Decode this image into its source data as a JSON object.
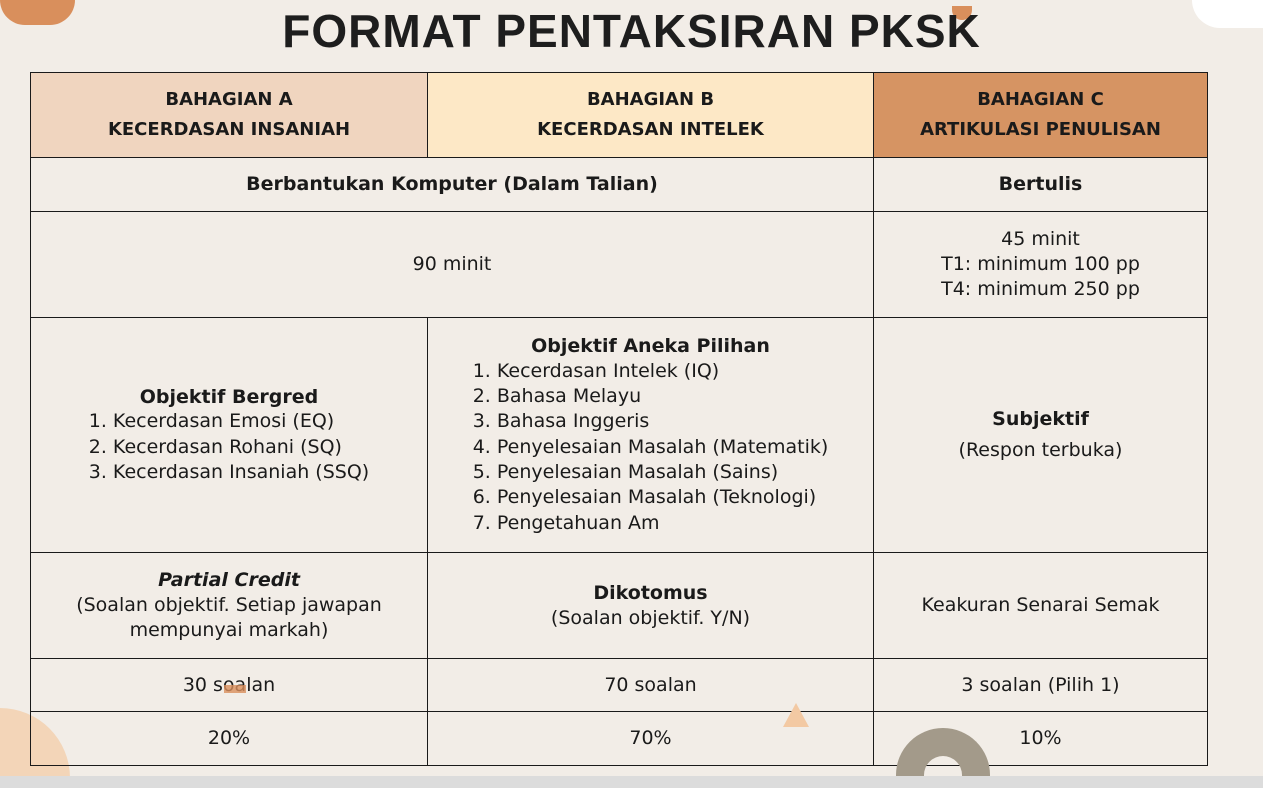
{
  "title": "FORMAT PENTAKSIRAN PKSK",
  "colors": {
    "background": "#f2ede7",
    "header_a": "#f0d5bf",
    "header_b": "#fde8c6",
    "header_c": "#d69463"
  },
  "headers": [
    {
      "line1": "BAHAGIAN A",
      "line2": "KECERDASAN INSANIAH"
    },
    {
      "line1": "BAHAGIAN B",
      "line2": "KECERDASAN INTELEK"
    },
    {
      "line1": "BAHAGIAN C",
      "line2": "ARTIKULASI PENULISAN"
    }
  ],
  "mode": {
    "ab": "Berbantukan Komputer (Dalam Talian)",
    "c": "Bertulis"
  },
  "duration": {
    "ab": "90 minit",
    "c": [
      "45 minit",
      "T1: minimum 100 pp",
      "T4: minimum 250 pp"
    ]
  },
  "content": {
    "a": {
      "heading": "Objektif Bergred",
      "items": [
        "1. Kecerdasan Emosi (EQ)",
        "2. Kecerdasan Rohani (SQ)",
        "3. Kecerdasan Insaniah (SSQ)"
      ]
    },
    "b": {
      "heading": "Objektif Aneka Pilihan",
      "items": [
        "1. Kecerdasan Intelek (IQ)",
        "2. Bahasa Melayu",
        "3. Bahasa Inggeris",
        "4. Penyelesaian Masalah (Matematik)",
        "5. Penyelesaian Masalah (Sains)",
        "6. Penyelesaian Masalah (Teknologi)",
        "7. Pengetahuan Am"
      ]
    },
    "c": {
      "heading": "Subjektif",
      "sub": "(Respon terbuka)"
    }
  },
  "scoring": {
    "a": {
      "heading": "Partial Credit",
      "sub": "(Soalan objektif. Setiap jawapan mempunyai markah)"
    },
    "b": {
      "heading": "Dikotomus",
      "sub": "(Soalan objektif. Y/N)"
    },
    "c": {
      "text": "Keakuran Senarai Semak"
    }
  },
  "questions": [
    "30 soalan",
    "70 soalan",
    "3 soalan (Pilih 1)"
  ],
  "weights": [
    "20%",
    "70%",
    "10%"
  ]
}
